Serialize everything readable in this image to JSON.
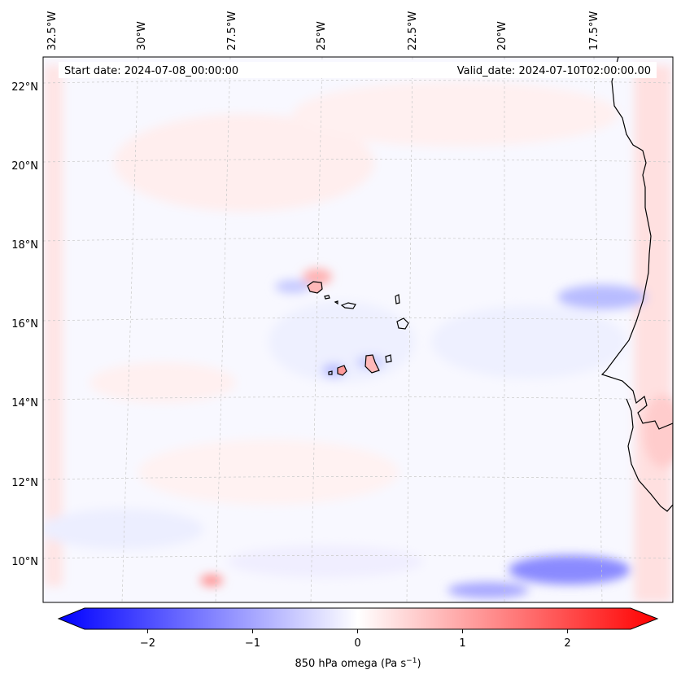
{
  "header": {
    "start_date": "Start date: 2024-07-08_00:00:00",
    "valid_date": "Valid_date: 2024-07-10T02:00:00.00"
  },
  "lon_labels": [
    "32.5°W",
    "30°W",
    "27.5°W",
    "25°W",
    "22.5°W",
    "20°W",
    "17.5°W"
  ],
  "lat_labels": [
    "22°N",
    "20°N",
    "18°N",
    "16°N",
    "14°N",
    "12°N",
    "10°N"
  ],
  "colorbar": {
    "ticks": [
      "−2",
      "−1",
      "0",
      "1",
      "2"
    ],
    "tick_values": [
      -2,
      -1,
      0,
      1,
      2
    ],
    "range": [
      -2.6,
      2.6
    ],
    "label_main": "850 hPa omega (Pa s",
    "label_sup": "−1",
    "label_end": ")",
    "colors": {
      "negative": "#0000ff",
      "neutral": "#ffffff",
      "positive": "#ff0000"
    }
  },
  "map": {
    "projection": "conic",
    "gridlines": true,
    "features": [
      "cape-verde-islands",
      "west-africa-coastline"
    ]
  }
}
